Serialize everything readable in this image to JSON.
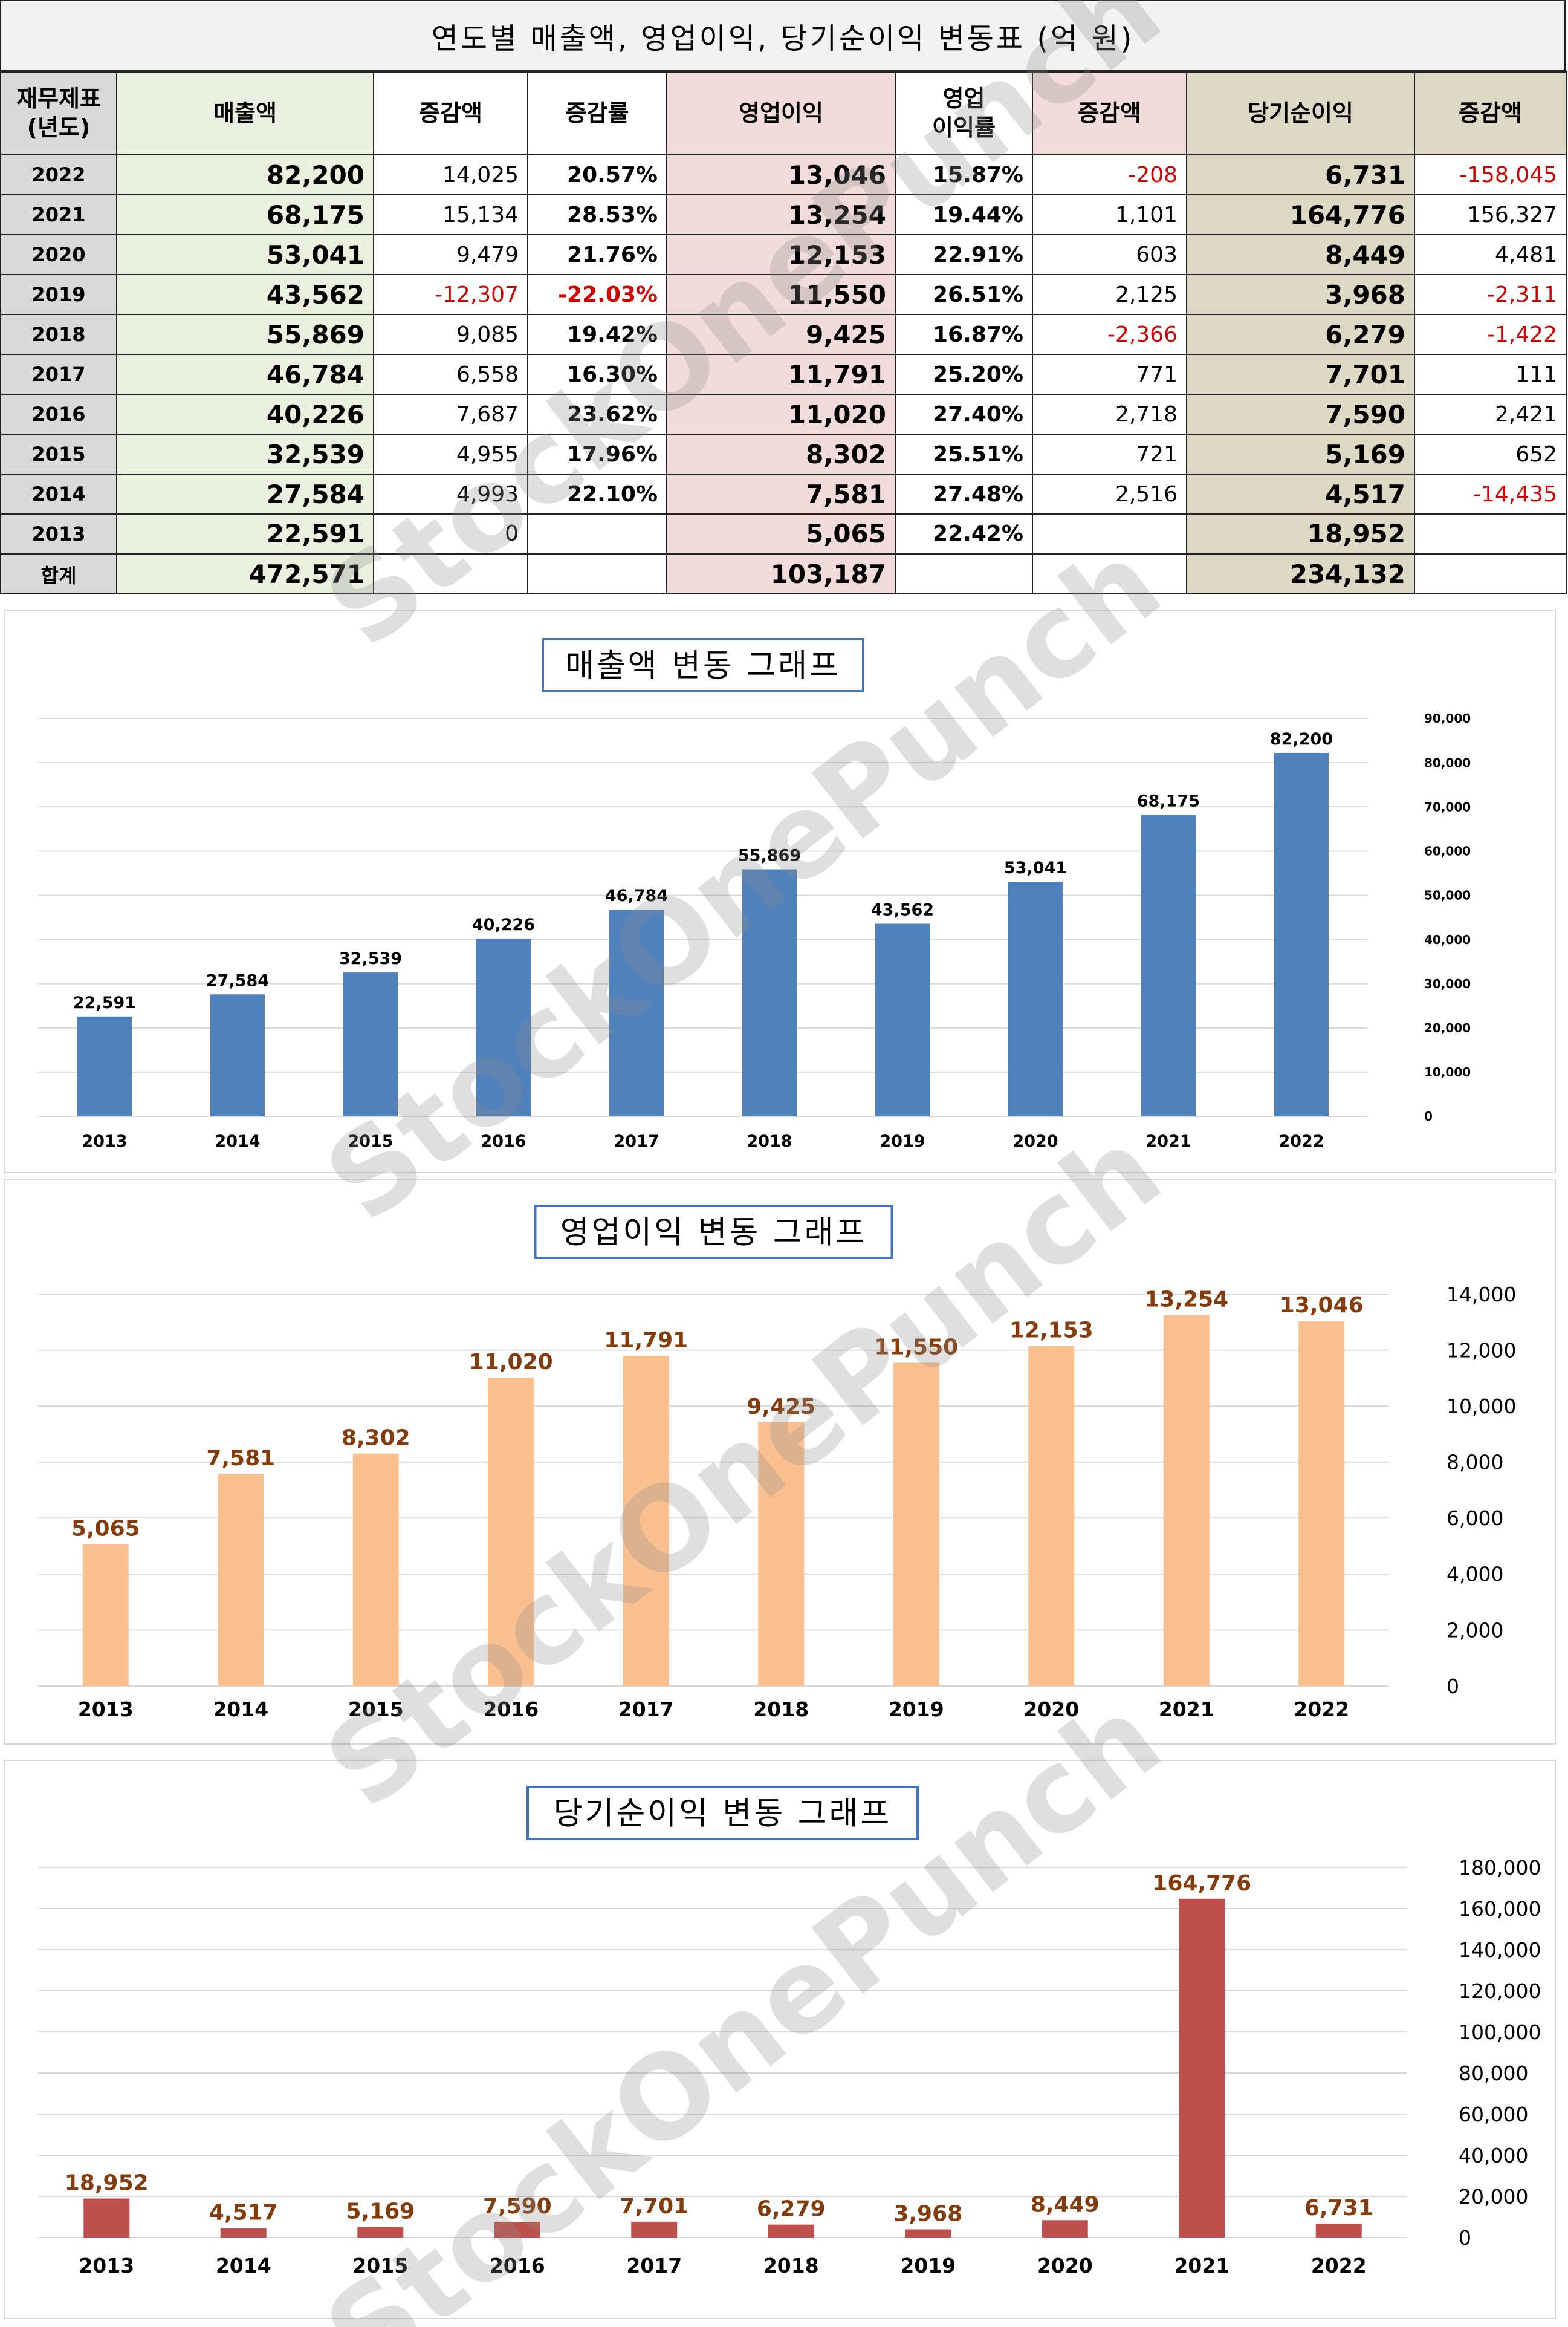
{
  "table": {
    "title": "연도별 매출액, 영업이익, 당기순이익 변동표   (억 원)",
    "headers": {
      "year": "재무제표\n(년도)",
      "sales": "매출액",
      "sales_change": "증감액",
      "sales_rate": "증감률",
      "op": "영업이익",
      "op_margin": "영업\n이익률",
      "op_change": "증감액",
      "net": "당기순이익",
      "net_change": "증감액"
    },
    "rows": [
      {
        "year": "2022",
        "sales": "82,200",
        "sales_change": "14,025",
        "sales_rate": "20.57%",
        "op": "13,046",
        "op_margin": "15.87%",
        "op_change": "-208",
        "net": "6,731",
        "net_change": "-158,045"
      },
      {
        "year": "2021",
        "sales": "68,175",
        "sales_change": "15,134",
        "sales_rate": "28.53%",
        "op": "13,254",
        "op_margin": "19.44%",
        "op_change": "1,101",
        "net": "164,776",
        "net_change": "156,327"
      },
      {
        "year": "2020",
        "sales": "53,041",
        "sales_change": "9,479",
        "sales_rate": "21.76%",
        "op": "12,153",
        "op_margin": "22.91%",
        "op_change": "603",
        "net": "8,449",
        "net_change": "4,481"
      },
      {
        "year": "2019",
        "sales": "43,562",
        "sales_change": "-12,307",
        "sales_rate": "-22.03%",
        "op": "11,550",
        "op_margin": "26.51%",
        "op_change": "2,125",
        "net": "3,968",
        "net_change": "-2,311"
      },
      {
        "year": "2018",
        "sales": "55,869",
        "sales_change": "9,085",
        "sales_rate": "19.42%",
        "op": "9,425",
        "op_margin": "16.87%",
        "op_change": "-2,366",
        "net": "6,279",
        "net_change": "-1,422"
      },
      {
        "year": "2017",
        "sales": "46,784",
        "sales_change": "6,558",
        "sales_rate": "16.30%",
        "op": "11,791",
        "op_margin": "25.20%",
        "op_change": "771",
        "net": "7,701",
        "net_change": "111"
      },
      {
        "year": "2016",
        "sales": "40,226",
        "sales_change": "7,687",
        "sales_rate": "23.62%",
        "op": "11,020",
        "op_margin": "27.40%",
        "op_change": "2,718",
        "net": "7,590",
        "net_change": "2,421"
      },
      {
        "year": "2015",
        "sales": "32,539",
        "sales_change": "4,955",
        "sales_rate": "17.96%",
        "op": "8,302",
        "op_margin": "25.51%",
        "op_change": "721",
        "net": "5,169",
        "net_change": "652"
      },
      {
        "year": "2014",
        "sales": "27,584",
        "sales_change": "4,993",
        "sales_rate": "22.10%",
        "op": "7,581",
        "op_margin": "27.48%",
        "op_change": "2,516",
        "net": "4,517",
        "net_change": "-14,435"
      },
      {
        "year": "2013",
        "sales": "22,591",
        "sales_change": "0",
        "sales_rate": "",
        "op": "5,065",
        "op_margin": "22.42%",
        "op_change": "",
        "net": "18,952",
        "net_change": ""
      }
    ],
    "total": {
      "label": "합계",
      "sales": "472,571",
      "op": "103,187",
      "net": "234,132"
    }
  },
  "watermark": "StockOnePunch",
  "colors": {
    "sales": "#4f81bd",
    "op": "#fac090",
    "net": "#c0504d",
    "op_label": "#843c0c",
    "negative": "#d40000"
  },
  "chart_data": [
    {
      "type": "bar",
      "title": "매출액 변동 그래프",
      "categories": [
        "2013",
        "2014",
        "2015",
        "2016",
        "2017",
        "2018",
        "2019",
        "2020",
        "2021",
        "2022"
      ],
      "values": [
        22591,
        27584,
        32539,
        40226,
        46784,
        55869,
        43562,
        53041,
        68175,
        82200
      ],
      "ylim": [
        0,
        90000
      ],
      "yticks": [
        0,
        10000,
        20000,
        30000,
        40000,
        50000,
        60000,
        70000,
        80000,
        90000
      ],
      "grid": true,
      "legend": "none"
    },
    {
      "type": "bar",
      "title": "영업이익 변동 그래프",
      "categories": [
        "2013",
        "2014",
        "2015",
        "2016",
        "2017",
        "2018",
        "2019",
        "2020",
        "2021",
        "2022"
      ],
      "values": [
        5065,
        7581,
        8302,
        11020,
        11791,
        9425,
        11550,
        12153,
        13254,
        13046
      ],
      "ylim": [
        0,
        14000
      ],
      "yticks": [
        0,
        2000,
        4000,
        6000,
        8000,
        10000,
        12000,
        14000
      ],
      "grid": true,
      "legend": "none"
    },
    {
      "type": "bar",
      "title": "당기순이익 변동 그래프",
      "categories": [
        "2013",
        "2014",
        "2015",
        "2016",
        "2017",
        "2018",
        "2019",
        "2020",
        "2021",
        "2022"
      ],
      "values": [
        18952,
        4517,
        5169,
        7590,
        7701,
        6279,
        3968,
        8449,
        164776,
        6731
      ],
      "ylim": [
        0,
        180000
      ],
      "yticks": [
        0,
        20000,
        40000,
        60000,
        80000,
        100000,
        120000,
        140000,
        160000,
        180000
      ],
      "grid": true,
      "legend": "none"
    }
  ]
}
